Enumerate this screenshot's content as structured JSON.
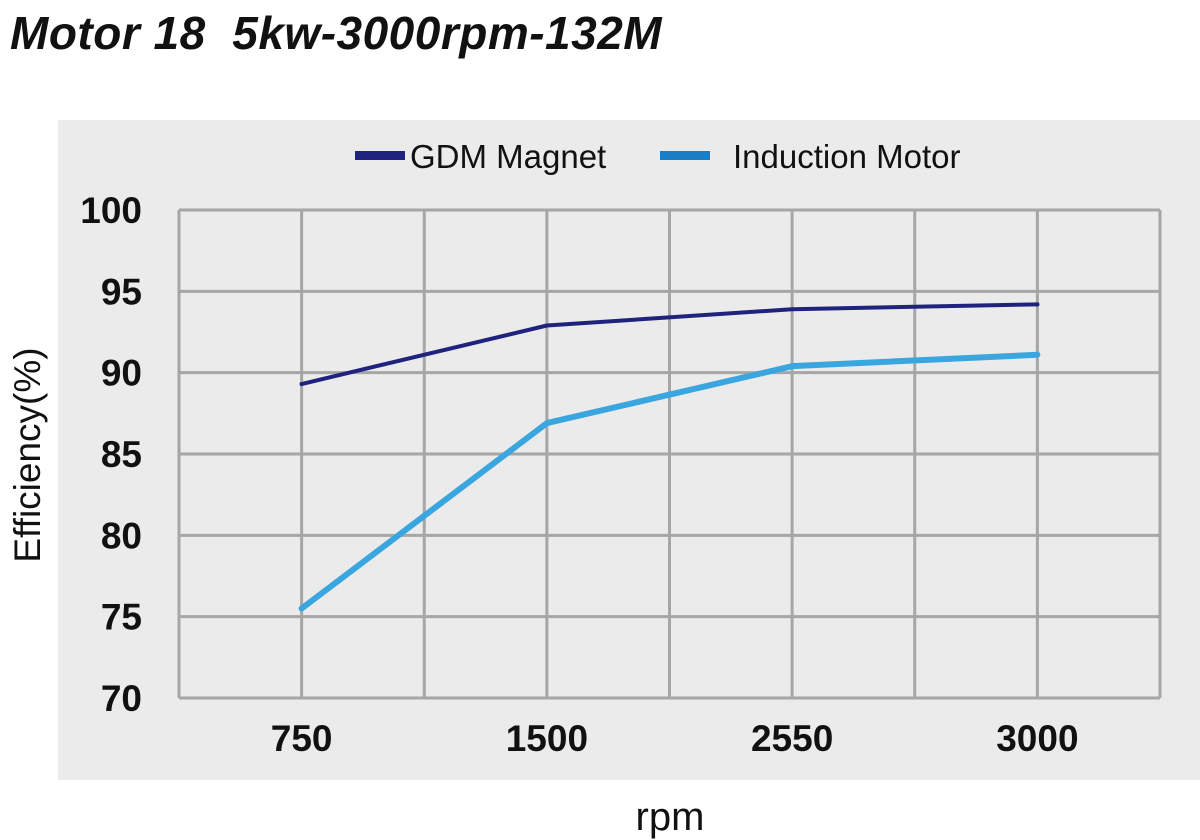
{
  "chart_data": {
    "type": "line",
    "title": "Motor 18  5kw-3000rpm-132M",
    "xlabel": "rpm",
    "ylabel": "Efficiency(%)",
    "categories": [
      "750",
      "1500",
      "2550",
      "3000"
    ],
    "ylim": [
      70,
      100
    ],
    "yticks": [
      "70",
      "75",
      "80",
      "85",
      "90",
      "95",
      "100"
    ],
    "grid": true,
    "legend_position": "top",
    "background_color": "#ebebeb",
    "series": [
      {
        "name": "GDM Magnet",
        "color": "#1f237d",
        "values": [
          89.3,
          92.9,
          93.9,
          94.2
        ]
      },
      {
        "name": "Induction Motor",
        "color": "#3aa6df",
        "legend_color": "#1b7ec4",
        "values": [
          75.5,
          86.9,
          90.4,
          91.1
        ]
      }
    ]
  }
}
